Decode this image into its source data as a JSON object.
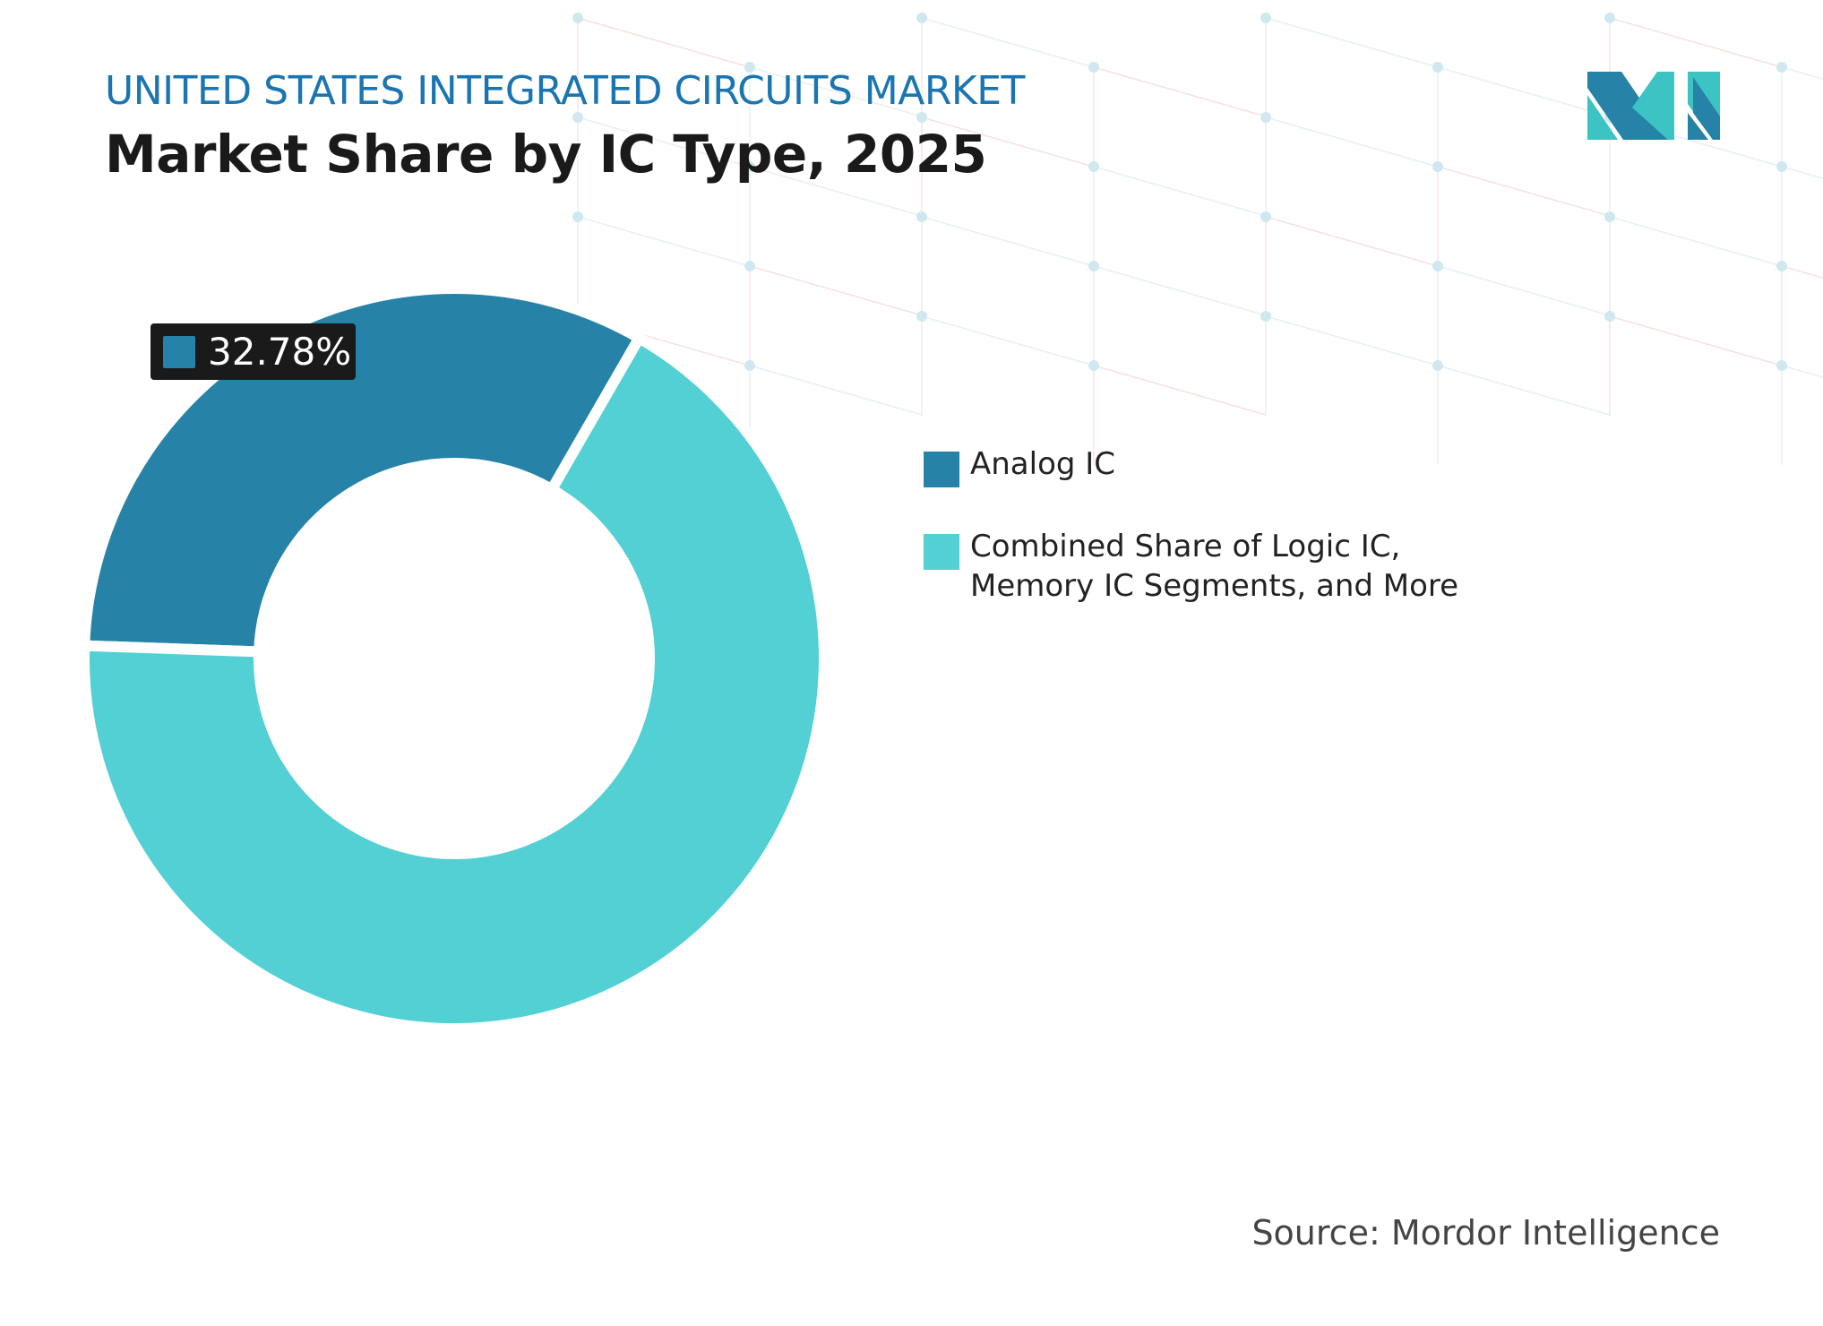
{
  "header": {
    "kicker": "UNITED STATES INTEGRATED CIRCUITS MARKET",
    "title": "Market Share by IC Type, 2025"
  },
  "chart_data": {
    "type": "pie",
    "variant": "donut",
    "categories": [
      "Analog IC",
      "Combined Share of Logic IC, Memory IC Segments, and More"
    ],
    "values": [
      32.78,
      67.22
    ],
    "colors": [
      "#2782a8",
      "#52d0d3"
    ],
    "data_labels": [
      {
        "category": "Analog IC",
        "text": "32.78%"
      }
    ],
    "legend_placement": "right"
  },
  "source": "Source: Mordor Intelligence",
  "logo": {
    "text": "MI",
    "colors": [
      "#2782a8",
      "#3cc3c3"
    ]
  }
}
